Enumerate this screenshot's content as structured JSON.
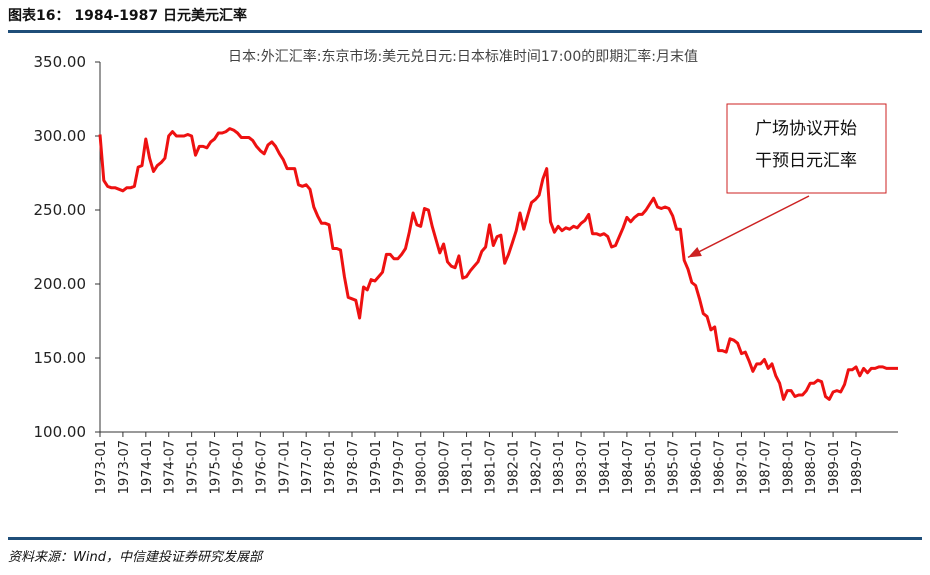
{
  "header": {
    "title": "图表16： 1984-1987 日元美元汇率"
  },
  "footer": {
    "source": "资料来源：Wind，中信建投证券研究发展部"
  },
  "colors": {
    "line": "#ee1111",
    "rule": "#1f4e79",
    "annotation_border": "#cc2222",
    "axis": "#333333"
  },
  "chart_data": {
    "type": "line",
    "subtitle": "日本:外汇汇率:东京市场:美元兑日元:日本标准时间17:00的即期汇率:月末值",
    "ylim": [
      100,
      350
    ],
    "yticks": [
      "100.00",
      "150.00",
      "200.00",
      "250.00",
      "300.00",
      "350.00"
    ],
    "ytick_values": [
      100,
      150,
      200,
      250,
      300,
      350
    ],
    "xlim": [
      "1973-01",
      "1990-06"
    ],
    "xticks": [
      "1973-01",
      "1973-07",
      "1974-01",
      "1974-07",
      "1975-01",
      "1975-07",
      "1976-01",
      "1976-07",
      "1977-01",
      "1977-07",
      "1978-01",
      "1978-07",
      "1979-01",
      "1979-07",
      "1980-01",
      "1980-07",
      "1981-01",
      "1981-07",
      "1982-01",
      "1982-07",
      "1983-01",
      "1983-07",
      "1984-01",
      "1984-07",
      "1985-01",
      "1985-07",
      "1986-01",
      "1986-07",
      "1987-01",
      "1987-07",
      "1988-01",
      "1988-07",
      "1989-01",
      "1989-07"
    ],
    "grid": false,
    "legend": "none",
    "annotation": {
      "lines": [
        "广场协议开始",
        "干预日元汇率"
      ],
      "arrow_to": [
        "1985-11",
        218
      ]
    },
    "series": [
      {
        "x": [
          "1973-01",
          "1973-02",
          "1973-03",
          "1973-04",
          "1973-05",
          "1973-06",
          "1973-07",
          "1973-08",
          "1973-09",
          "1973-10",
          "1973-11",
          "1973-12",
          "1974-01",
          "1974-02",
          "1974-03",
          "1974-04",
          "1974-05",
          "1974-06",
          "1974-07",
          "1974-08",
          "1974-09",
          "1974-10",
          "1974-11",
          "1974-12",
          "1975-01",
          "1975-02",
          "1975-03",
          "1975-04",
          "1975-05",
          "1975-06",
          "1975-07",
          "1975-08",
          "1975-09",
          "1975-10",
          "1975-11",
          "1975-12",
          "1976-01",
          "1976-02",
          "1976-03",
          "1976-04",
          "1976-05",
          "1976-06",
          "1976-07",
          "1976-08",
          "1976-09",
          "1976-10",
          "1976-11",
          "1976-12",
          "1977-01",
          "1977-02",
          "1977-03",
          "1977-04",
          "1977-05",
          "1977-06",
          "1977-07",
          "1977-08",
          "1977-09",
          "1977-10",
          "1977-11",
          "1977-12",
          "1978-01",
          "1978-02",
          "1978-03",
          "1978-04",
          "1978-05",
          "1978-06",
          "1978-07",
          "1978-08",
          "1978-09",
          "1978-10",
          "1978-11",
          "1978-12",
          "1979-01",
          "1979-02",
          "1979-03",
          "1979-04",
          "1979-05",
          "1979-06",
          "1979-07",
          "1979-08",
          "1979-09",
          "1979-10",
          "1979-11",
          "1979-12",
          "1980-01",
          "1980-02",
          "1980-03",
          "1980-04",
          "1980-05",
          "1980-06",
          "1980-07",
          "1980-08",
          "1980-09",
          "1980-10",
          "1980-11",
          "1980-12",
          "1981-01",
          "1981-02",
          "1981-03",
          "1981-04",
          "1981-05",
          "1981-06",
          "1981-07",
          "1981-08",
          "1981-09",
          "1981-10",
          "1981-11",
          "1981-12",
          "1982-01",
          "1982-02",
          "1982-03",
          "1982-04",
          "1982-05",
          "1982-06",
          "1982-07",
          "1982-08",
          "1982-09",
          "1982-10",
          "1982-11",
          "1982-12",
          "1983-01",
          "1983-02",
          "1983-03",
          "1983-04",
          "1983-05",
          "1983-06",
          "1983-07",
          "1983-08",
          "1983-09",
          "1983-10",
          "1983-11",
          "1983-12",
          "1984-01",
          "1984-02",
          "1984-03",
          "1984-04",
          "1984-05",
          "1984-06",
          "1984-07",
          "1984-08",
          "1984-09",
          "1984-10",
          "1984-11",
          "1984-12",
          "1985-01",
          "1985-02",
          "1985-03",
          "1985-04",
          "1985-05",
          "1985-06",
          "1985-07",
          "1985-08",
          "1985-09",
          "1985-10",
          "1985-11",
          "1985-12",
          "1986-01",
          "1986-02",
          "1986-03",
          "1986-04",
          "1986-05",
          "1986-06",
          "1986-07",
          "1986-08",
          "1986-09",
          "1986-10",
          "1986-11",
          "1986-12",
          "1987-01",
          "1987-02",
          "1987-03",
          "1987-04",
          "1987-05",
          "1987-06",
          "1987-07",
          "1987-08",
          "1987-09",
          "1987-10",
          "1987-11",
          "1987-12",
          "1988-01",
          "1988-02",
          "1988-03",
          "1988-04",
          "1988-05",
          "1988-06",
          "1988-07",
          "1988-08",
          "1988-09",
          "1988-10",
          "1988-11",
          "1988-12",
          "1989-01",
          "1989-02",
          "1989-03",
          "1989-04",
          "1989-05",
          "1989-06",
          "1989-07",
          "1989-08",
          "1989-09",
          "1989-10",
          "1989-11",
          "1989-12",
          "1990-01",
          "1990-02",
          "1990-03",
          "1990-04",
          "1990-05",
          "1990-06"
        ],
        "values": [
          301,
          270,
          266,
          265,
          265,
          264,
          263,
          265,
          265,
          266,
          279,
          280,
          298,
          285,
          276,
          280,
          282,
          285,
          300,
          303,
          300,
          300,
          300,
          301,
          300,
          287,
          293,
          293,
          292,
          296,
          298,
          302,
          302,
          303,
          305,
          304,
          302,
          299,
          299,
          299,
          297,
          293,
          290,
          288,
          294,
          296,
          293,
          288,
          284,
          278,
          278,
          278,
          267,
          266,
          267,
          264,
          252,
          246,
          241,
          241,
          240,
          224,
          224,
          223,
          205,
          191,
          190,
          189,
          177,
          198,
          196,
          203,
          202,
          205,
          208,
          220,
          220,
          217,
          217,
          220,
          224,
          235,
          248,
          240,
          239,
          251,
          250,
          239,
          230,
          221,
          227,
          215,
          212,
          211,
          219,
          204,
          205,
          209,
          212,
          215,
          222,
          225,
          240,
          226,
          232,
          233,
          214,
          220,
          228,
          236,
          248,
          237,
          246,
          255,
          257,
          260,
          271,
          278,
          242,
          235,
          239,
          236,
          238,
          237,
          239,
          238,
          241,
          243,
          247,
          234,
          234,
          233,
          234,
          232,
          225,
          226,
          232,
          238,
          245,
          242,
          245,
          247,
          247,
          250,
          254,
          258,
          252,
          251,
          252,
          251,
          246,
          237,
          237,
          216,
          210,
          201,
          199,
          190,
          180,
          178,
          169,
          171,
          155,
          155,
          154,
          163,
          162,
          160,
          153,
          154,
          148,
          141,
          146,
          146,
          149,
          143,
          146,
          138,
          133,
          122,
          128,
          128,
          124,
          125,
          125,
          128,
          133,
          133,
          135,
          134,
          124,
          122,
          127,
          128,
          127,
          132,
          142,
          142,
          144,
          138,
          143,
          140,
          143,
          143,
          144,
          144,
          143,
          143,
          143,
          143
        ]
      }
    ]
  }
}
